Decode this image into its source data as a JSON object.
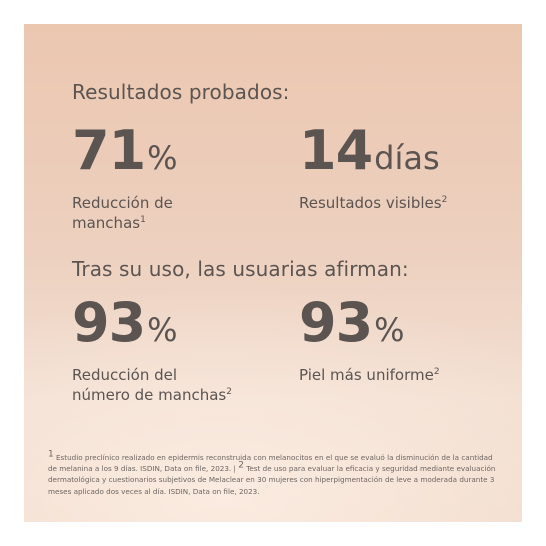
{
  "section1": {
    "heading": "Resultados probados:",
    "stats": [
      {
        "value": "71",
        "unit": "%",
        "desc": "Reducción de manchas",
        "sup": "1"
      },
      {
        "value": "14",
        "unit": "días",
        "desc": "Resultados visibles",
        "sup": "2"
      }
    ]
  },
  "section2": {
    "heading": "Tras su uso, las usuarias afirman:",
    "stats": [
      {
        "value": "93",
        "unit": "%",
        "desc": "Reducción del número de manchas",
        "sup": "2"
      },
      {
        "value": "93",
        "unit": "%",
        "desc": "Piel más uniforme",
        "sup": "2"
      }
    ]
  },
  "footnote": {
    "note1_marker": "1",
    "note1_text": " Estudio preclínico realizado en epidermis reconstruida con melanocitos en el que se evaluó la disminución de la cantidad de melanina a los 9 días. ISDIN, Data on file, 2023. | ",
    "note2_marker": "2",
    "note2_text": " Test de uso para evaluar la eficacia y seguridad mediante evaluación dermatológica y cuestionarios subjetivos de Melaclear en 30 mujeres con hiperpigmentación de leve a moderada durante 3 meses aplicado dos veces al día. ISDIN, Data on file, 2023."
  },
  "colors": {
    "text": "#5b5451",
    "background_top": "#ebc7b0",
    "background_bottom": "#f0dccd"
  }
}
